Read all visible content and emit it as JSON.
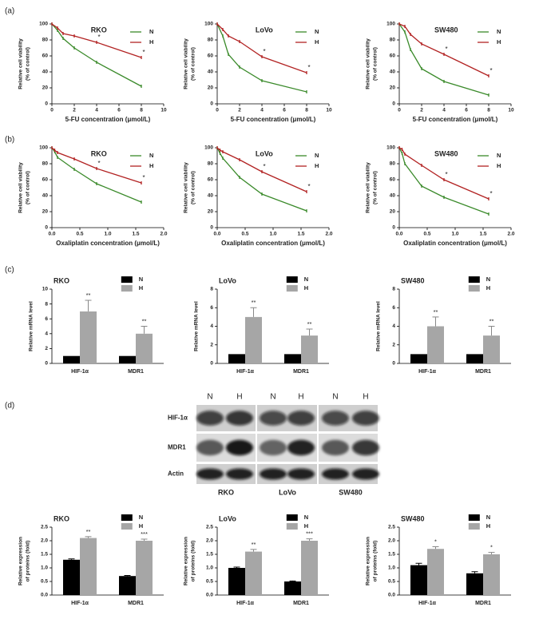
{
  "panel_labels": [
    "(a)",
    "(b)",
    "(c)",
    "(d)"
  ],
  "blot": {
    "lanes": [
      "N",
      "H",
      "N",
      "H",
      "N",
      "H"
    ],
    "proteins": [
      "HIF-1α",
      "MDR1",
      "Actin"
    ],
    "cell_lines": [
      "RKO",
      "LoVo",
      "SW480"
    ]
  },
  "chart_data": [
    {
      "type": "line",
      "title": "RKO",
      "xlabel": "5-FU concentration (μmol/L)",
      "ylabel": [
        "Relative cell viability",
        "(% of control)"
      ],
      "x": [
        0,
        0.5,
        1,
        2,
        4,
        8
      ],
      "xlim": [
        0,
        10
      ],
      "xticks": [
        0,
        2,
        4,
        6,
        8,
        10
      ],
      "ylim": [
        0,
        100
      ],
      "yticks": [
        0,
        20,
        40,
        60,
        80,
        100
      ],
      "series": [
        {
          "name": "N",
          "color": "#3a8a2a",
          "values": [
            100,
            92,
            82,
            70,
            52,
            22
          ]
        },
        {
          "name": "H",
          "color": "#b22222",
          "values": [
            100,
            95,
            88,
            85,
            77,
            58
          ],
          "significance": [
            null,
            null,
            null,
            null,
            "*",
            "*"
          ]
        }
      ]
    },
    {
      "type": "line",
      "title": "LoVo",
      "xlabel": "5-FU concentration (μmol/L)",
      "ylabel": [
        "Relative cell viability",
        "(% of control)"
      ],
      "x": [
        0,
        0.5,
        1,
        2,
        4,
        8
      ],
      "xlim": [
        0,
        10
      ],
      "xticks": [
        0,
        2,
        4,
        6,
        8,
        10
      ],
      "ylim": [
        0,
        100
      ],
      "yticks": [
        0,
        20,
        40,
        60,
        80,
        100
      ],
      "series": [
        {
          "name": "N",
          "color": "#3a8a2a",
          "values": [
            100,
            85,
            62,
            46,
            29,
            15
          ]
        },
        {
          "name": "H",
          "color": "#b22222",
          "values": [
            100,
            93,
            85,
            78,
            59,
            39
          ],
          "significance": [
            null,
            null,
            null,
            null,
            "*",
            "*"
          ]
        }
      ]
    },
    {
      "type": "line",
      "title": "SW480",
      "xlabel": "5-FU concentration (μmol/L)",
      "ylabel": [
        "Relative cell viability",
        "(% of control)"
      ],
      "x": [
        0,
        0.5,
        1,
        2,
        4,
        8
      ],
      "xlim": [
        0,
        10
      ],
      "xticks": [
        0,
        2,
        4,
        6,
        8,
        10
      ],
      "ylim": [
        0,
        100
      ],
      "yticks": [
        0,
        20,
        40,
        60,
        80,
        100
      ],
      "series": [
        {
          "name": "N",
          "color": "#3a8a2a",
          "values": [
            100,
            90,
            68,
            44,
            28,
            11
          ]
        },
        {
          "name": "H",
          "color": "#b22222",
          "values": [
            100,
            97,
            87,
            75,
            62,
            35
          ],
          "significance": [
            null,
            null,
            null,
            null,
            "*",
            "*"
          ]
        }
      ]
    },
    {
      "type": "line",
      "title": "RKO",
      "xlabel": "Oxaliplatin concentration (μmol/L)",
      "ylabel": [
        "Relative cell viability",
        "(% of control)"
      ],
      "x": [
        0,
        0.05,
        0.1,
        0.4,
        0.8,
        1.6
      ],
      "xlim": [
        0,
        2
      ],
      "xticks": [
        {
          "value": 0,
          "label": "0.0"
        },
        0.5,
        {
          "value": 1,
          "label": "1.0"
        },
        1.5,
        {
          "value": 2,
          "label": "2.0"
        }
      ],
      "ylim": [
        0,
        100
      ],
      "yticks": [
        0,
        20,
        40,
        60,
        80,
        100
      ],
      "series": [
        {
          "name": "N",
          "color": "#3a8a2a",
          "values": [
            100,
            95,
            88,
            73,
            55,
            32
          ]
        },
        {
          "name": "H",
          "color": "#b22222",
          "values": [
            100,
            97,
            94,
            86,
            74,
            56
          ],
          "significance": [
            null,
            null,
            null,
            null,
            "*",
            "*"
          ]
        }
      ]
    },
    {
      "type": "line",
      "title": "LoVo",
      "xlabel": "Oxaliplatin concentration (μmol/L)",
      "ylabel": [
        "Relative cell viability",
        "(% of control)"
      ],
      "x": [
        0,
        0.05,
        0.1,
        0.4,
        0.8,
        1.6
      ],
      "xlim": [
        0,
        2
      ],
      "xticks": [
        {
          "value": 0,
          "label": "0.0"
        },
        0.5,
        {
          "value": 1,
          "label": "1.0"
        },
        1.5,
        {
          "value": 2,
          "label": "2.0"
        }
      ],
      "ylim": [
        0,
        100
      ],
      "yticks": [
        0,
        20,
        40,
        60,
        80,
        100
      ],
      "series": [
        {
          "name": "N",
          "color": "#3a8a2a",
          "values": [
            100,
            93,
            87,
            63,
            42,
            21
          ]
        },
        {
          "name": "H",
          "color": "#b22222",
          "values": [
            100,
            97,
            95,
            85,
            70,
            45
          ],
          "significance": [
            null,
            null,
            null,
            null,
            "*",
            "*"
          ]
        }
      ]
    },
    {
      "type": "line",
      "title": "SW480",
      "xlabel": "Oxaliplatin concentration (μmol/L)",
      "ylabel": [
        "Relative cell viability",
        "(% of control)"
      ],
      "x": [
        0,
        0.05,
        0.1,
        0.4,
        0.8,
        1.6
      ],
      "xlim": [
        0,
        2
      ],
      "xticks": [
        {
          "value": 0,
          "label": "0.0"
        },
        0.5,
        {
          "value": 1,
          "label": "1.0"
        },
        1.5,
        {
          "value": 2,
          "label": "2.0"
        }
      ],
      "ylim": [
        0,
        100
      ],
      "yticks": [
        0,
        20,
        40,
        60,
        80,
        100
      ],
      "series": [
        {
          "name": "N",
          "color": "#3a8a2a",
          "values": [
            100,
            93,
            80,
            52,
            38,
            17
          ]
        },
        {
          "name": "H",
          "color": "#b22222",
          "values": [
            100,
            98,
            92,
            78,
            60,
            36
          ],
          "significance": [
            null,
            null,
            null,
            null,
            "*",
            "*"
          ]
        }
      ]
    },
    {
      "type": "bar",
      "title": "RKO",
      "ylabel": [
        "Relative mRNA level"
      ],
      "categories": [
        "HIF-1α",
        "MDR1"
      ],
      "ylim": [
        0,
        10
      ],
      "yticks": [
        0,
        2,
        4,
        6,
        8,
        10
      ],
      "series": [
        {
          "name": "N",
          "color": "#000000",
          "values": [
            1,
            1
          ]
        },
        {
          "name": "H",
          "color": "#a6a6a6",
          "values": [
            7,
            4
          ],
          "errors": [
            1.5,
            1
          ],
          "significance": [
            "**",
            "**"
          ]
        }
      ]
    },
    {
      "type": "bar",
      "title": "LoVo",
      "ylabel": [
        "Relative mRNA level"
      ],
      "categories": [
        "HIF-1α",
        "MDR1"
      ],
      "ylim": [
        0,
        8
      ],
      "yticks": [
        0,
        2,
        4,
        6,
        8
      ],
      "series": [
        {
          "name": "N",
          "color": "#000000",
          "values": [
            1,
            1
          ]
        },
        {
          "name": "H",
          "color": "#a6a6a6",
          "values": [
            5,
            3
          ],
          "errors": [
            1,
            0.7
          ],
          "significance": [
            "**",
            "**"
          ]
        }
      ]
    },
    {
      "type": "bar",
      "title": "SW480",
      "ylabel": [
        "Relative mRNA level"
      ],
      "categories": [
        "HIF-1α",
        "MDR1"
      ],
      "ylim": [
        0,
        8
      ],
      "yticks": [
        0,
        2,
        4,
        6,
        8
      ],
      "series": [
        {
          "name": "N",
          "color": "#000000",
          "values": [
            1,
            1
          ]
        },
        {
          "name": "H",
          "color": "#a6a6a6",
          "values": [
            4,
            3
          ],
          "errors": [
            1,
            1
          ],
          "significance": [
            "**",
            "**"
          ]
        }
      ]
    },
    {
      "type": "bar",
      "title": "RKO",
      "ylabel": [
        "Relative expression",
        "of proteins (fold)"
      ],
      "categories": [
        "HIF-1α",
        "MDR1"
      ],
      "ylim": [
        0,
        2.5
      ],
      "yticks": [
        {
          "value": 0,
          "label": "0.0"
        },
        0.5,
        {
          "value": 1,
          "label": "1.0"
        },
        1.5,
        {
          "value": 2,
          "label": "2.0"
        },
        2.5
      ],
      "series": [
        {
          "name": "N",
          "color": "#000000",
          "values": [
            1.3,
            0.7
          ],
          "errors": [
            0.03,
            0.02
          ]
        },
        {
          "name": "H",
          "color": "#a6a6a6",
          "values": [
            2.1,
            2.0
          ],
          "errors": [
            0.05,
            0.06
          ],
          "significance": [
            "**",
            "***"
          ]
        }
      ]
    },
    {
      "type": "bar",
      "title": "LoVo",
      "ylabel": [
        "Relative expression",
        "of proteins (fold)"
      ],
      "categories": [
        "HIF-1α",
        "MDR1"
      ],
      "ylim": [
        0,
        2.5
      ],
      "yticks": [
        {
          "value": 0,
          "label": "0.0"
        },
        0.5,
        {
          "value": 1,
          "label": "1.0"
        },
        1.5,
        {
          "value": 2,
          "label": "2.0"
        },
        2.5
      ],
      "series": [
        {
          "name": "N",
          "color": "#000000",
          "values": [
            1.0,
            0.5
          ],
          "errors": [
            0.03,
            0.02
          ]
        },
        {
          "name": "H",
          "color": "#a6a6a6",
          "values": [
            1.6,
            2.0
          ],
          "errors": [
            0.08,
            0.07
          ],
          "significance": [
            "**",
            "***"
          ]
        }
      ]
    },
    {
      "type": "bar",
      "title": "SW480",
      "ylabel": [
        "Relative expression",
        "of proteins (fold)"
      ],
      "categories": [
        "HIF-1α",
        "MDR1"
      ],
      "ylim": [
        0,
        2.5
      ],
      "yticks": [
        {
          "value": 0,
          "label": "0.0"
        },
        0.5,
        {
          "value": 1,
          "label": "1.0"
        },
        1.5,
        {
          "value": 2,
          "label": "2.0"
        },
        2.5
      ],
      "series": [
        {
          "name": "N",
          "color": "#000000",
          "values": [
            1.1,
            0.8
          ],
          "errors": [
            0.07,
            0.06
          ]
        },
        {
          "name": "H",
          "color": "#a6a6a6",
          "values": [
            1.7,
            1.5
          ],
          "errors": [
            0.08,
            0.07
          ],
          "significance": [
            "*",
            "*"
          ]
        }
      ]
    }
  ]
}
